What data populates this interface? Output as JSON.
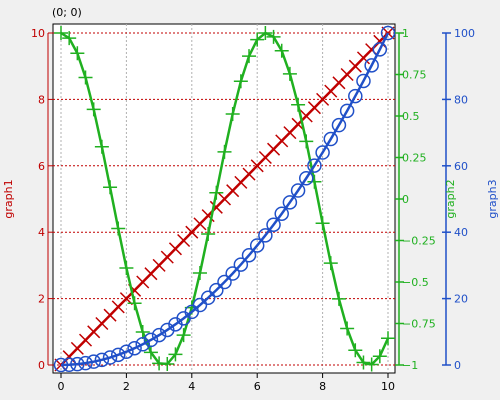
{
  "coord_readout": "(0; 0)",
  "chart_data": {
    "type": "line",
    "x": [
      0,
      0.25,
      0.5,
      0.75,
      1,
      1.25,
      1.5,
      1.75,
      2,
      2.25,
      2.5,
      2.75,
      3,
      3.25,
      3.5,
      3.75,
      4,
      4.25,
      4.5,
      4.75,
      5,
      5.25,
      5.5,
      5.75,
      6,
      6.25,
      6.5,
      6.75,
      7,
      7.25,
      7.5,
      7.75,
      8,
      8.25,
      8.5,
      8.75,
      9,
      9.25,
      9.5,
      9.75,
      10
    ],
    "xlim": [
      0,
      10
    ],
    "x_ticks": [
      0,
      2,
      4,
      6,
      8,
      10
    ],
    "grid": true,
    "axes": {
      "graph1": {
        "label": "graph1",
        "side": "left",
        "color": "#c00000",
        "ylim": [
          0,
          10
        ],
        "ticks": [
          0,
          2,
          4,
          6,
          8,
          10
        ]
      },
      "graph2": {
        "label": "graph2",
        "side": "right",
        "color": "#20b020",
        "ylim": [
          -1,
          1
        ],
        "ticks": [
          -1,
          -0.75,
          -0.5,
          -0.25,
          0,
          0.25,
          0.5,
          0.75,
          1
        ]
      },
      "graph3": {
        "label": "graph3",
        "side": "right-outer",
        "color": "#2050c8",
        "ylim": [
          0,
          100
        ],
        "ticks": [
          0,
          20,
          40,
          60,
          80,
          100
        ]
      }
    },
    "series": [
      {
        "name": "graph1",
        "axis": "graph1",
        "color": "#c00000",
        "marker": "cross",
        "values": [
          0,
          0.25,
          0.5,
          0.75,
          1,
          1.25,
          1.5,
          1.75,
          2,
          2.25,
          2.5,
          2.75,
          3,
          3.25,
          3.5,
          3.75,
          4,
          4.25,
          4.5,
          4.75,
          5,
          5.25,
          5.5,
          5.75,
          6,
          6.25,
          6.5,
          6.75,
          7,
          7.25,
          7.5,
          7.75,
          8,
          8.25,
          8.5,
          8.75,
          9,
          9.25,
          9.5,
          9.75,
          10
        ]
      },
      {
        "name": "graph2",
        "axis": "graph2",
        "color": "#20b020",
        "marker": "plus",
        "values": [
          1,
          0.969,
          0.878,
          0.732,
          0.54,
          0.315,
          0.071,
          -0.178,
          -0.416,
          -0.628,
          -0.801,
          -0.924,
          -0.99,
          -0.994,
          -0.936,
          -0.82,
          -0.654,
          -0.446,
          -0.211,
          0.038,
          0.284,
          0.512,
          0.709,
          0.861,
          0.96,
          1.0,
          0.977,
          0.893,
          0.754,
          0.568,
          0.347,
          0.104,
          -0.146,
          -0.386,
          -0.602,
          -0.78,
          -0.911,
          -0.985,
          -0.997,
          -0.947,
          -0.839
        ]
      },
      {
        "name": "graph3",
        "axis": "graph3",
        "color": "#2050c8",
        "marker": "circle",
        "values": [
          0,
          0.06,
          0.25,
          0.56,
          1,
          1.56,
          2.25,
          3.06,
          4,
          5.06,
          6.25,
          7.56,
          9,
          10.56,
          12.25,
          14.06,
          16,
          18.06,
          20.25,
          22.56,
          25,
          27.56,
          30.25,
          33.06,
          36,
          39.06,
          42.25,
          45.56,
          49,
          52.56,
          56.25,
          60.06,
          64,
          68.06,
          72.25,
          76.56,
          81,
          85.56,
          90.25,
          95.06,
          100
        ]
      }
    ]
  }
}
